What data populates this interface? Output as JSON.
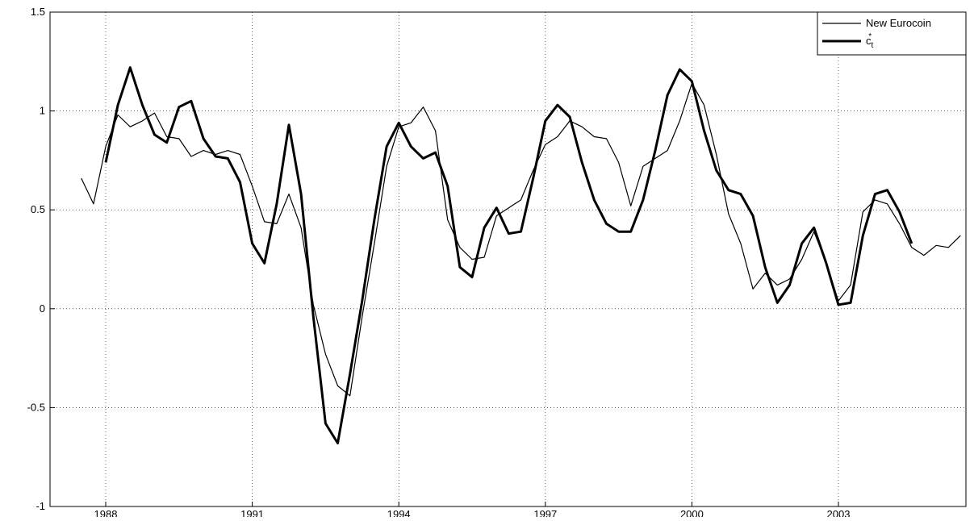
{
  "chart_data": {
    "type": "line",
    "x": [
      1987.5,
      1987.75,
      1988,
      1988.25,
      1988.5,
      1988.75,
      1989,
      1989.25,
      1989.5,
      1989.75,
      1990,
      1990.25,
      1990.5,
      1990.75,
      1991,
      1991.25,
      1991.5,
      1991.75,
      1992,
      1992.25,
      1992.5,
      1992.75,
      1993,
      1993.25,
      1993.5,
      1993.75,
      1994,
      1994.25,
      1994.5,
      1994.75,
      1995,
      1995.25,
      1995.5,
      1995.75,
      1996,
      1996.25,
      1996.5,
      1996.75,
      1997,
      1997.25,
      1997.5,
      1997.75,
      1998,
      1998.25,
      1998.5,
      1998.75,
      1999,
      1999.25,
      1999.5,
      1999.75,
      2000,
      2000.25,
      2000.5,
      2000.75,
      2001,
      2001.25,
      2001.5,
      2001.75,
      2002,
      2002.25,
      2002.5,
      2002.75,
      2003,
      2003.25,
      2003.5,
      2003.75,
      2004,
      2004.25,
      2004.5,
      2004.75,
      2005,
      2005.25,
      2005.5
    ],
    "series": [
      {
        "name": "New Eurocoin",
        "color": "#000000",
        "width": 1.2,
        "values": [
          0.66,
          0.53,
          0.82,
          0.98,
          0.92,
          0.95,
          0.99,
          0.87,
          0.86,
          0.77,
          0.8,
          0.78,
          0.8,
          0.78,
          0.62,
          0.44,
          0.43,
          0.58,
          0.41,
          0.02,
          -0.23,
          -0.39,
          -0.44,
          -0.04,
          0.33,
          0.72,
          0.92,
          0.94,
          1.02,
          0.9,
          0.45,
          0.31,
          0.25,
          0.26,
          0.47,
          0.51,
          0.55,
          0.7,
          0.83,
          0.87,
          0.95,
          0.92,
          0.87,
          0.86,
          0.74,
          0.52,
          0.72,
          0.76,
          0.8,
          0.95,
          1.14,
          1.03,
          0.78,
          0.48,
          0.33,
          0.1,
          0.18,
          0.12,
          0.15,
          0.25,
          0.39,
          0.23,
          0.04,
          0.12,
          0.49,
          0.55,
          0.53,
          0.43,
          0.31,
          0.27,
          0.32,
          0.31,
          0.37
        ]
      },
      {
        "name": "c_t^*",
        "color": "#000000",
        "width": 3,
        "values": [
          null,
          null,
          0.74,
          1.03,
          1.22,
          1.03,
          0.88,
          0.84,
          1.02,
          1.05,
          0.86,
          0.77,
          0.76,
          0.64,
          0.33,
          0.23,
          0.53,
          0.93,
          0.58,
          -0.04,
          -0.58,
          -0.68,
          -0.33,
          0.04,
          0.45,
          0.82,
          0.94,
          0.82,
          0.76,
          0.79,
          0.62,
          0.21,
          0.16,
          0.41,
          0.51,
          0.38,
          0.39,
          0.66,
          0.95,
          1.03,
          0.97,
          0.74,
          0.55,
          0.43,
          0.39,
          0.39,
          0.55,
          0.8,
          1.08,
          1.21,
          1.15,
          0.9,
          0.7,
          0.6,
          0.58,
          0.47,
          0.21,
          0.03,
          0.12,
          0.33,
          0.41,
          0.23,
          0.02,
          0.03,
          0.37,
          0.58,
          0.6,
          0.49,
          0.33,
          null,
          null,
          null,
          null
        ]
      }
    ],
    "xlim": [
      1986.86,
      2005.61
    ],
    "xticks": [
      1988,
      1991,
      1994,
      1997,
      2000,
      2003
    ],
    "ylim": [
      -1,
      1.5
    ],
    "yticks": [
      -1,
      -0.5,
      0,
      0.5,
      1,
      1.5
    ],
    "grid": true,
    "legend": "top-right"
  }
}
